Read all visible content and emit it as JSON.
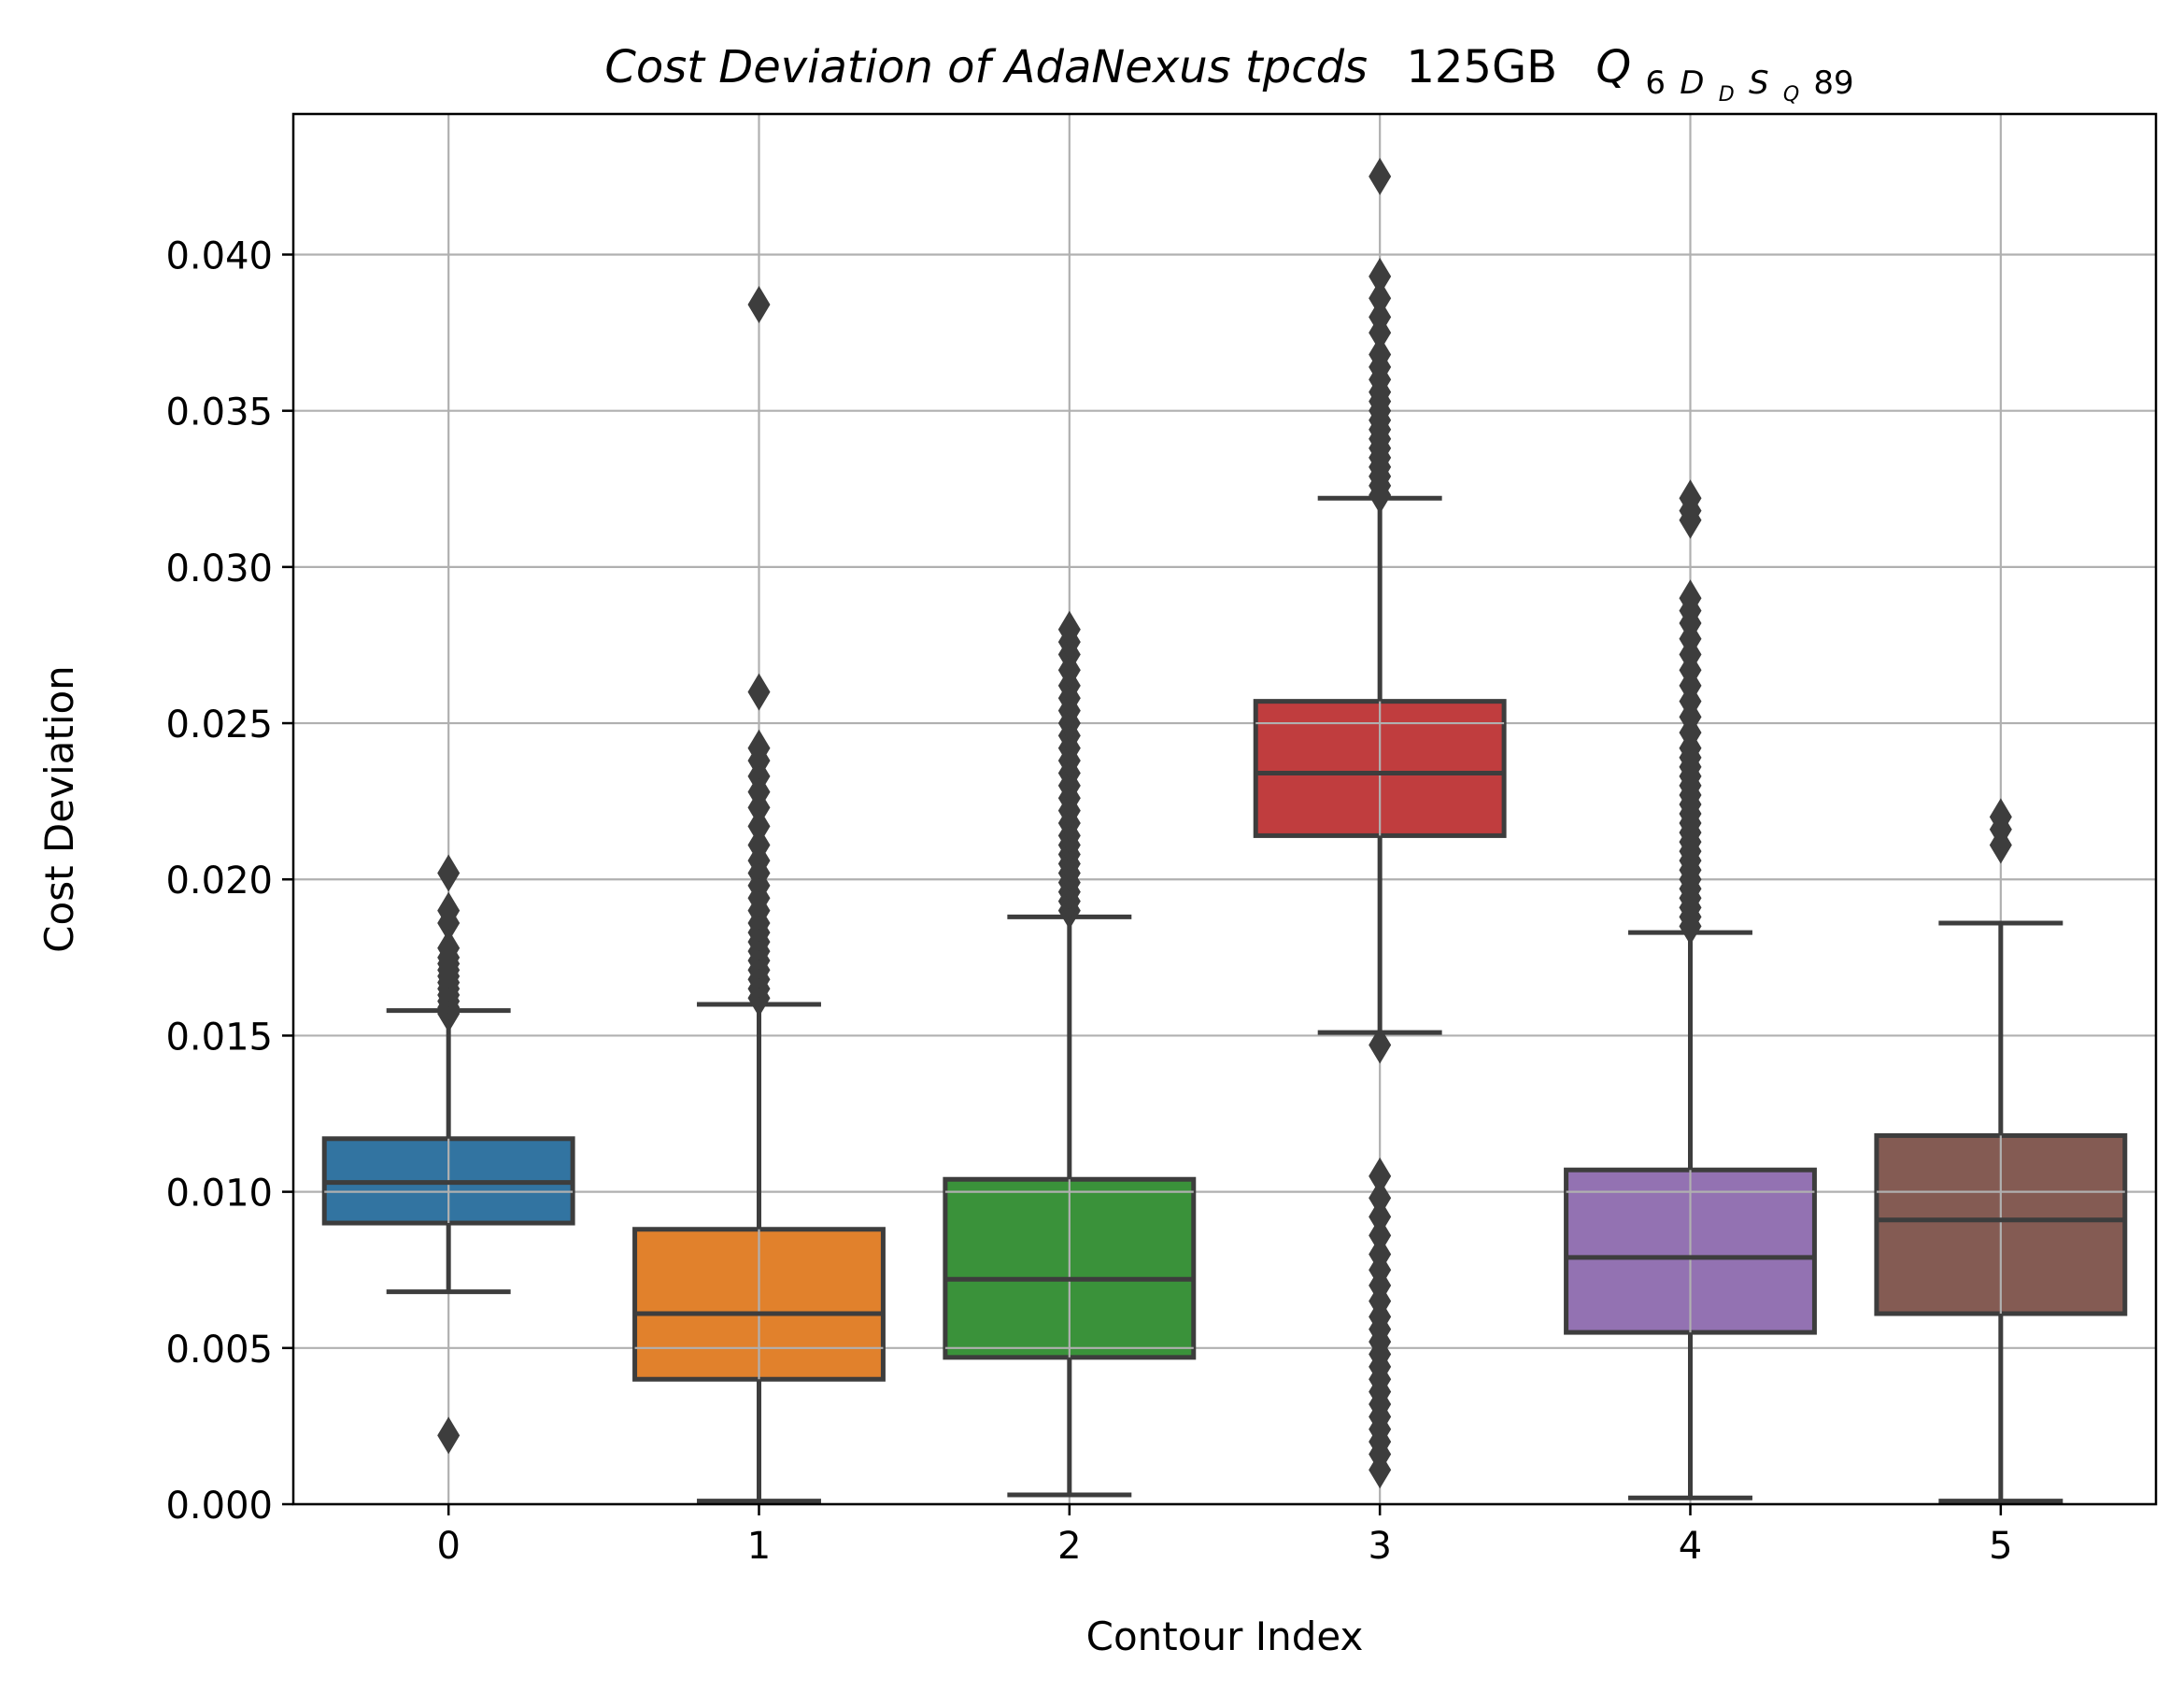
{
  "chart_data": {
    "type": "box",
    "title": {
      "italic_part": "Cost Deviation of AdaNexus tpcds",
      "normal_part": "125GB",
      "q_letter": "Q",
      "sub_6": "6",
      "sub_D": "D",
      "sub_sub_D": "D",
      "sub_S": "S",
      "sub_sub_Q": "Q",
      "q_suffix": "89"
    },
    "xlabel": "Contour Index",
    "ylabel": "Cost Deviation",
    "ylim": [
      0.0,
      0.0445
    ],
    "xlim": [
      -0.5,
      5.5
    ],
    "yticks": [
      0.0,
      0.005,
      0.01,
      0.015,
      0.02,
      0.025,
      0.03,
      0.035,
      0.04
    ],
    "ytick_labels": [
      "0.000",
      "0.005",
      "0.010",
      "0.015",
      "0.020",
      "0.025",
      "0.030",
      "0.035",
      "0.040"
    ],
    "categories": [
      "0",
      "1",
      "2",
      "3",
      "4",
      "5"
    ],
    "grid": true,
    "boxes": [
      {
        "category": "0",
        "color": "#3274a1",
        "q1": 0.009,
        "median": 0.0103,
        "q3": 0.0117,
        "whisker_low": 0.0068,
        "whisker_high": 0.0158,
        "outliers": [
          0.0022,
          0.0157,
          0.0159,
          0.0161,
          0.0163,
          0.0165,
          0.0167,
          0.0169,
          0.0171,
          0.0173,
          0.0175,
          0.0178,
          0.0186,
          0.019,
          0.0202
        ]
      },
      {
        "category": "1",
        "color": "#e1812c",
        "q1": 0.004,
        "median": 0.0061,
        "q3": 0.0088,
        "whisker_low": 0.0001,
        "whisker_high": 0.016,
        "outliers": [
          0.0162,
          0.0165,
          0.0168,
          0.0171,
          0.0174,
          0.0177,
          0.018,
          0.0183,
          0.0186,
          0.019,
          0.0194,
          0.0198,
          0.0202,
          0.0206,
          0.0211,
          0.0217,
          0.0223,
          0.0228,
          0.0233,
          0.0238,
          0.0242,
          0.026,
          0.0384
        ]
      },
      {
        "category": "2",
        "color": "#3a923a",
        "q1": 0.0047,
        "median": 0.0072,
        "q3": 0.0104,
        "whisker_low": 0.0003,
        "whisker_high": 0.0188,
        "outliers": [
          0.019,
          0.0193,
          0.0196,
          0.0199,
          0.0202,
          0.0205,
          0.0208,
          0.0211,
          0.0214,
          0.0218,
          0.0222,
          0.0226,
          0.023,
          0.0234,
          0.0238,
          0.0242,
          0.0246,
          0.025,
          0.0254,
          0.0258,
          0.0262,
          0.0267,
          0.0272,
          0.0276,
          0.028
        ]
      },
      {
        "category": "3",
        "color": "#c03d3e",
        "q1": 0.0214,
        "median": 0.0234,
        "q3": 0.0257,
        "whisker_low": 0.0151,
        "whisker_high": 0.0322,
        "outliers": [
          0.0011,
          0.0016,
          0.002,
          0.0024,
          0.0028,
          0.0032,
          0.0036,
          0.004,
          0.0044,
          0.0048,
          0.0052,
          0.0056,
          0.006,
          0.0065,
          0.007,
          0.0075,
          0.008,
          0.0086,
          0.0092,
          0.0098,
          0.0105,
          0.0147,
          0.0323,
          0.0326,
          0.0329,
          0.0332,
          0.0335,
          0.0338,
          0.0341,
          0.0344,
          0.0347,
          0.035,
          0.0353,
          0.0356,
          0.036,
          0.0364,
          0.0368,
          0.0375,
          0.038,
          0.0386,
          0.0393,
          0.0425
        ]
      },
      {
        "category": "4",
        "color": "#9372b2",
        "q1": 0.0055,
        "median": 0.0079,
        "q3": 0.0107,
        "whisker_low": 0.0002,
        "whisker_high": 0.0183,
        "outliers": [
          0.0185,
          0.0188,
          0.0191,
          0.0194,
          0.0197,
          0.02,
          0.0203,
          0.0206,
          0.0209,
          0.0212,
          0.0215,
          0.0218,
          0.0221,
          0.0224,
          0.0227,
          0.023,
          0.0233,
          0.0236,
          0.0239,
          0.0242,
          0.0247,
          0.0252,
          0.0257,
          0.0262,
          0.0267,
          0.0272,
          0.0277,
          0.0282,
          0.0286,
          0.029,
          0.0315,
          0.0318,
          0.0322
        ]
      },
      {
        "category": "5",
        "color": "#845b53",
        "q1": 0.0061,
        "median": 0.0091,
        "q3": 0.0118,
        "whisker_low": 0.0001,
        "whisker_high": 0.0186,
        "outliers": [
          0.0211,
          0.0216,
          0.022
        ]
      }
    ]
  }
}
